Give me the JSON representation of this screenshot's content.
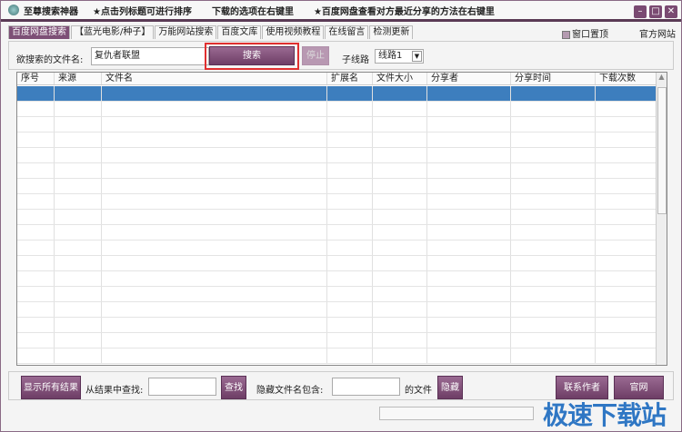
{
  "title": {
    "app": "至尊搜索神器",
    "tip1": "★点击列标题可进行排序",
    "tip2": "下载的选项在右键里",
    "tip3": "★百度网盘查看对方最近分享的方法在右键里"
  },
  "tabs": [
    {
      "label": "百度网盘搜索",
      "active": true
    },
    {
      "label": "【蓝光电影/种子】"
    },
    {
      "label": "万能网站搜索"
    },
    {
      "label": "百度文库"
    },
    {
      "label": "使用视频教程"
    },
    {
      "label": "在线留言"
    },
    {
      "label": "检测更新"
    }
  ],
  "topright": {
    "pin_label": "窗口置顶",
    "pin_checked": false,
    "site_link": "官方网站"
  },
  "search": {
    "label": "欲搜索的文件名:",
    "value": "复仇者联盟",
    "search_button": "搜索",
    "stop_button": "停止",
    "line_label": "子线路",
    "line_value": "线路1"
  },
  "table": {
    "columns": [
      "序号",
      "来源",
      "文件名",
      "扩展名",
      "文件大小",
      "分享者",
      "分享时间",
      "下载次数"
    ],
    "rows": []
  },
  "bottom": {
    "show_all": "显示所有结果",
    "find_label": "从结果中查找:",
    "find_value": "",
    "find_button": "查找",
    "hide_label": "隐藏文件名包含:",
    "hide_value": "",
    "hide_suffix": "的文件",
    "hide_button": "隐藏",
    "contact_button": "联系作者",
    "site_button": "官网"
  },
  "watermark": "极速下载站",
  "colors": {
    "accent": "#7d4f76",
    "selected_row": "#3d7ebe"
  }
}
